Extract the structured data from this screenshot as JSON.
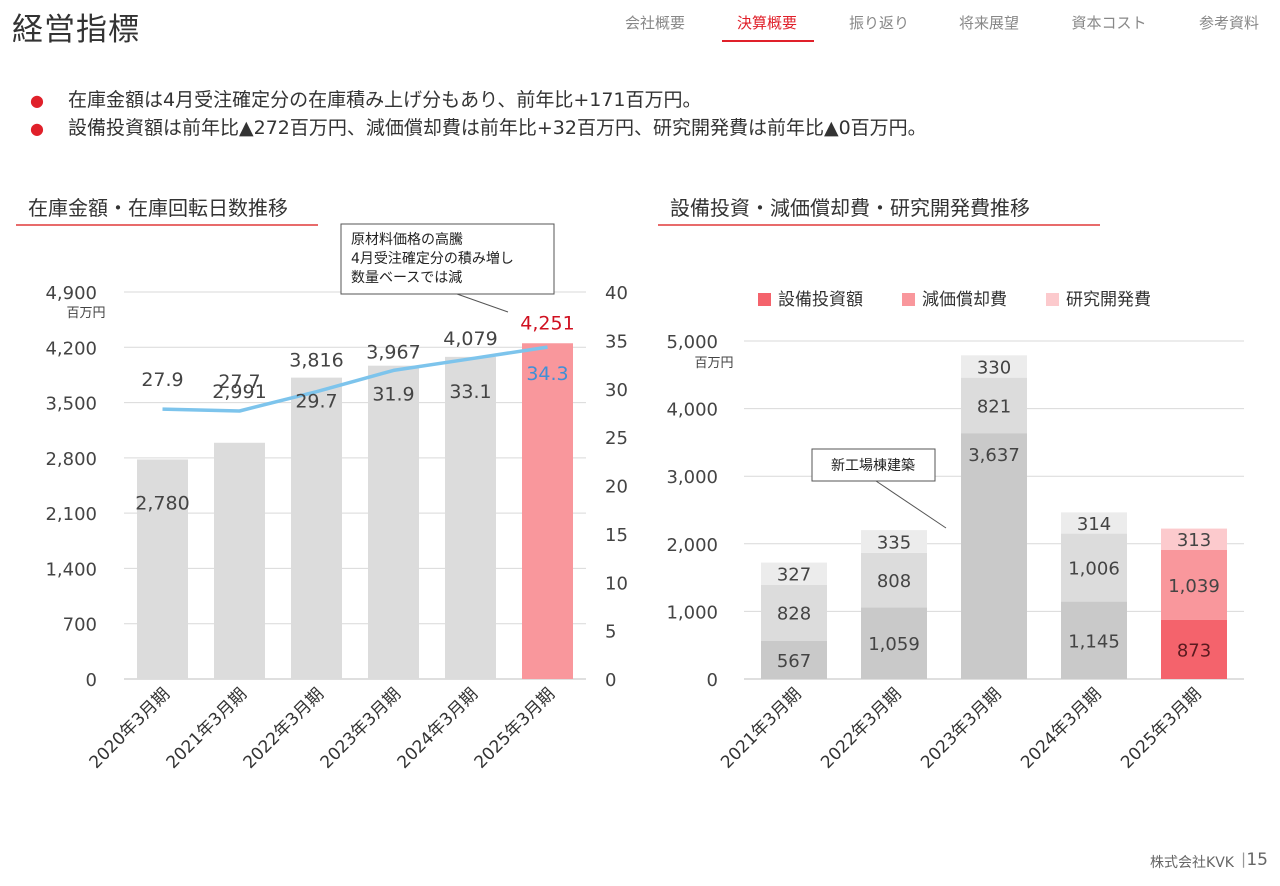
{
  "page": {
    "title": "経営指標",
    "nav": [
      {
        "label": "会社概要",
        "active": false
      },
      {
        "label": "決算概要",
        "active": true
      },
      {
        "label": "振り返り",
        "active": false
      },
      {
        "label": "将来展望",
        "active": false
      },
      {
        "label": "資本コスト",
        "active": false
      },
      {
        "label": "参考資料",
        "active": false
      }
    ],
    "bullets": [
      "在庫金額は4月受注確定分の在庫積み上げ分もあり、前年比+171百万円。",
      "設備投資額は前年比▲272百万円、減価償却費は前年比+32百万円、研究開発費は前年比▲0百万円。"
    ],
    "footer": {
      "company": "株式会社KVK",
      "separator": "|",
      "page_number": "15"
    },
    "colors": {
      "accent": "#e0202a",
      "bar_gray": "#dcdcdc",
      "bar_highlight": "#f9979c",
      "line": "#7dc4ec"
    }
  },
  "chart_data": [
    {
      "type": "bar",
      "title": "在庫金額・在庫回転日数推移",
      "categories": [
        "2020年3月期",
        "2021年3月期",
        "2022年3月期",
        "2023年3月期",
        "2024年3月期",
        "2025年3月期"
      ],
      "y_unit": "百万円",
      "ylim": [
        0,
        4900
      ],
      "yticks": [
        "0",
        "700",
        "1,400",
        "2,100",
        "2,800",
        "3,500",
        "4,200",
        "4,900"
      ],
      "y2lim": [
        0,
        40
      ],
      "y2ticks": [
        "0",
        "5",
        "10",
        "15",
        "20",
        "25",
        "30",
        "35",
        "40"
      ],
      "series": [
        {
          "values": [
            2780,
            2991,
            3816,
            3967,
            4079,
            4251
          ],
          "labels": [
            "2,780",
            "2,991",
            "3,816",
            "3,967",
            "4,079",
            "4,251"
          ]
        },
        {
          "type": "line",
          "axis": "right",
          "values": [
            27.9,
            27.7,
            29.7,
            31.9,
            33.1,
            34.3
          ],
          "labels": [
            "27.9",
            "27.7",
            "29.7",
            "31.9",
            "33.1",
            "34.3"
          ]
        }
      ],
      "annotation": {
        "lines": [
          "原材料価格の高騰",
          "4月受注確定分の積み増し",
          "数量ベースでは減"
        ]
      },
      "highlight_index": 5,
      "grid": true
    },
    {
      "type": "bar",
      "stacked": true,
      "title": "設備投資・減価償却費・研究開発費推移",
      "categories": [
        "2021年3月期",
        "2022年3月期",
        "2023年3月期",
        "2024年3月期",
        "2025年3月期"
      ],
      "y_unit": "百万円",
      "ylim": [
        0,
        5000
      ],
      "yticks": [
        "0",
        "1,000",
        "2,000",
        "3,000",
        "4,000",
        "5,000"
      ],
      "series": [
        {
          "name": "設備投資額",
          "values": [
            567,
            1059,
            3637,
            1145,
            873
          ],
          "labels": [
            "567",
            "1,059",
            "3,637",
            "1,145",
            "873"
          ],
          "color": "#c9c9c9",
          "highlight_color": "#f4636c"
        },
        {
          "name": "減価償却費",
          "values": [
            828,
            808,
            821,
            1006,
            1039
          ],
          "labels": [
            "828",
            "808",
            "821",
            "1,006",
            "1,039"
          ],
          "color": "#dcdcdc",
          "highlight_color": "#f9979c"
        },
        {
          "name": "研究開発費",
          "values": [
            327,
            335,
            330,
            314,
            313
          ],
          "labels": [
            "327",
            "335",
            "330",
            "314",
            "313"
          ],
          "color": "#ececec",
          "highlight_color": "#fccacd"
        }
      ],
      "legend_position": "top",
      "annotation": {
        "text": "新工場棟建築"
      },
      "highlight_index": 4,
      "grid": true
    }
  ]
}
